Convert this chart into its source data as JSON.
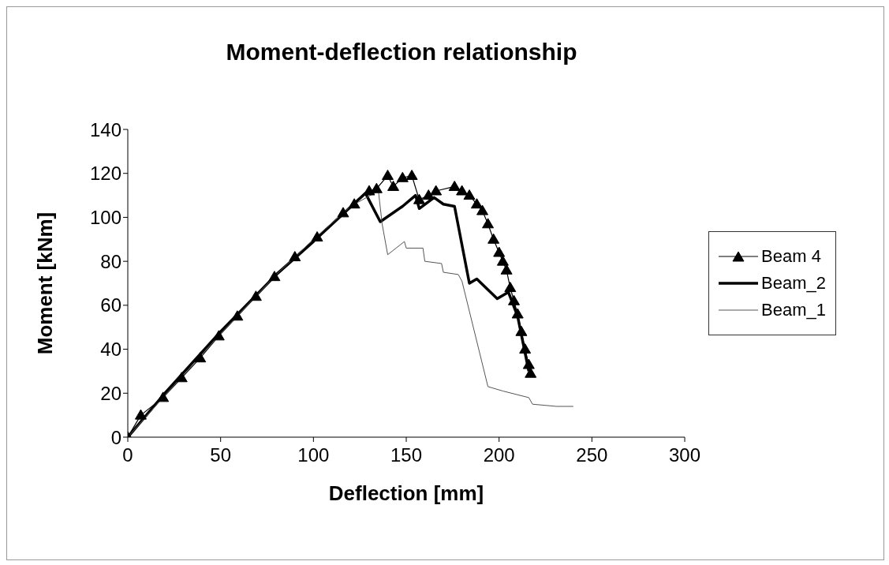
{
  "chart_data": {
    "type": "line",
    "title": "Moment-deflection relationship",
    "xlabel": "Deflection [mm]",
    "ylabel": "Moment [kNm]",
    "xlim": [
      0,
      300
    ],
    "xticks": [
      0,
      50,
      100,
      150,
      200,
      250,
      300
    ],
    "ylim": [
      0,
      140
    ],
    "yticks": [
      0,
      20,
      40,
      60,
      80,
      100,
      120,
      140
    ],
    "grid": false,
    "legend": "right",
    "series": [
      {
        "name": "Beam 4",
        "color": "#000000",
        "marker": "triangle",
        "x": [
          0,
          7,
          19,
          29,
          39,
          49,
          59,
          69,
          79,
          90,
          102,
          116,
          122,
          130,
          134,
          140,
          143,
          148,
          153,
          157,
          162,
          166,
          176,
          180,
          184,
          188,
          191,
          194,
          197,
          200,
          202,
          204,
          206,
          208,
          210,
          212,
          214,
          216,
          217
        ],
        "values": [
          0,
          10,
          18,
          27,
          36,
          46,
          55,
          64,
          73,
          82,
          91,
          102,
          106,
          112,
          113,
          119,
          114,
          118,
          119,
          108,
          110,
          112,
          114,
          112,
          110,
          106,
          103,
          97,
          90,
          84,
          80,
          76,
          68,
          62,
          56,
          48,
          40,
          33,
          29
        ]
      },
      {
        "name": "Beam_2",
        "color": "#000000",
        "marker": "none",
        "x": [
          0,
          20,
          50,
          80,
          100,
          128,
          136,
          148,
          155,
          157,
          165,
          170,
          176,
          184,
          188,
          199,
          205,
          210,
          216
        ],
        "values": [
          0,
          20,
          48,
          74,
          89,
          111,
          98,
          105,
          110,
          104,
          109,
          106,
          105,
          70,
          72,
          63,
          66,
          55,
          30
        ]
      },
      {
        "name": "Beam_1",
        "color": "#555555",
        "marker": "none",
        "x": [
          0,
          20,
          50,
          80,
          100,
          120,
          135,
          137,
          140,
          149,
          150,
          159,
          160,
          169,
          170,
          178,
          180,
          194,
          202,
          216,
          218,
          231,
          240
        ],
        "values": [
          0,
          19,
          47,
          74,
          90,
          105,
          112,
          97,
          83,
          89,
          86,
          86,
          80,
          79,
          75,
          74,
          71,
          23,
          21,
          18,
          15,
          14,
          14
        ]
      }
    ]
  }
}
